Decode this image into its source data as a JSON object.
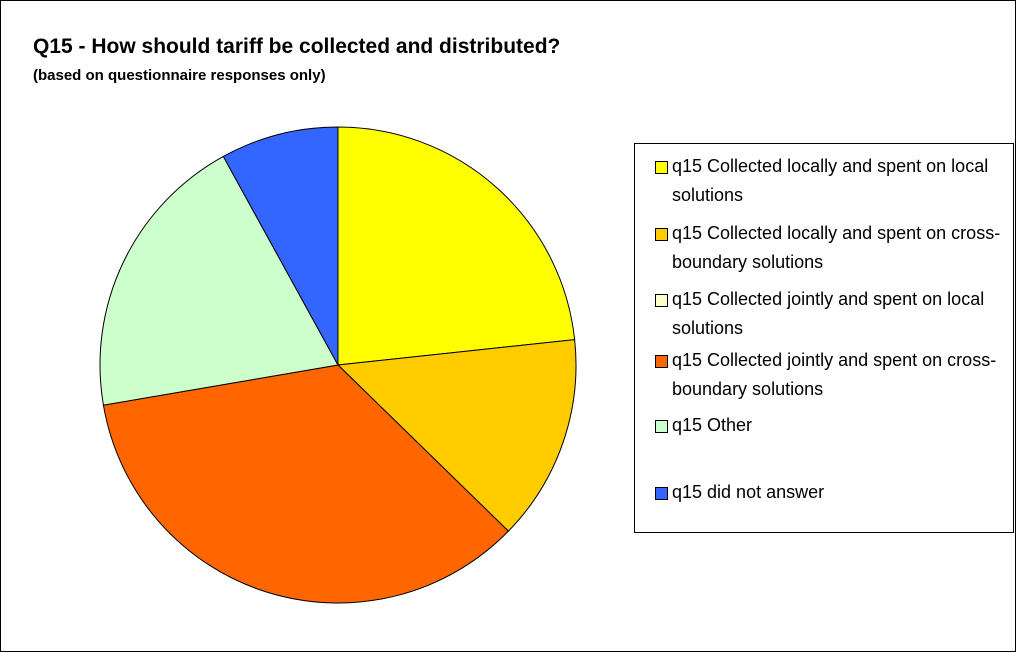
{
  "chart_data": {
    "type": "pie",
    "title": "Q15 - How should tariff be collected and distributed?",
    "subtitle": "(based on questionnaire responses only)",
    "categories": [
      "q15 Collected locally and spent on local solutions",
      "q15 Collected locally and spent on cross-boundary solutions",
      "q15 Collected jointly and spent on local solutions",
      "q15 Collected jointly and spent on cross- boundary solutions",
      "q15 Other",
      "q15 did not answer"
    ],
    "values": [
      23.3,
      14.0,
      0,
      35.0,
      19.7,
      8.0
    ],
    "colors": [
      "#FFFF00",
      "#FFCC00",
      "#FFFFCC",
      "#FF6600",
      "#CCFFCC",
      "#3366FF"
    ],
    "legend_position": "right",
    "start_angle_deg": 0,
    "direction": "clockwise"
  }
}
